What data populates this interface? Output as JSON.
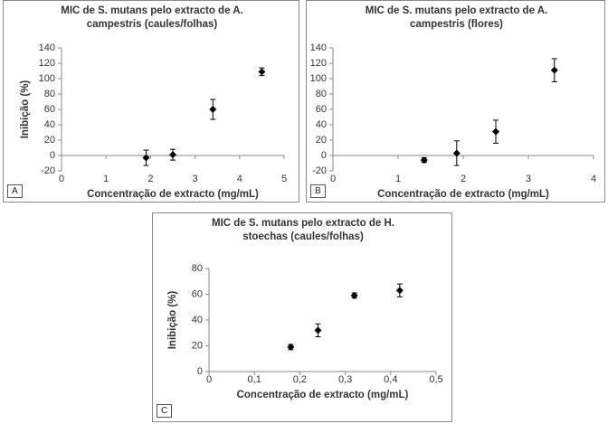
{
  "chart_data": [
    {
      "type": "scatter",
      "title": "MIC de S. mutans pelo extracto de A. campestris (caules/folhas)",
      "panel_label": "A",
      "x_label": "Concentração de extracto (mg/mL)",
      "y_label": "Inibição (%)",
      "x": [
        1.9,
        2.5,
        3.4,
        4.5
      ],
      "values": [
        -3,
        1,
        60,
        109
      ],
      "errors": [
        10,
        7,
        13,
        5
      ],
      "color": "#000000",
      "xlim": [
        0,
        5
      ],
      "xticks": [
        0,
        1,
        2,
        3,
        4,
        5
      ],
      "ylim": [
        -20,
        140
      ],
      "yticks": [
        -20,
        0,
        20,
        40,
        60,
        80,
        100,
        120,
        140
      ]
    },
    {
      "type": "scatter",
      "title": "MIC de S. mutans pelo extracto de A. campestris (flores)",
      "panel_label": "B",
      "x_label": "Concentração de extracto (mg/mL)",
      "y_label": "Inibição (%)",
      "x": [
        1.4,
        1.9,
        2.5,
        3.4
      ],
      "values": [
        -6,
        3,
        31,
        111
      ],
      "errors": [
        3,
        16,
        15,
        15
      ],
      "color": "#000000",
      "xlim": [
        0,
        4
      ],
      "xticks": [
        0,
        1,
        2,
        3,
        4
      ],
      "ylim": [
        -20,
        140
      ],
      "yticks": [
        -20,
        0,
        20,
        40,
        60,
        80,
        100,
        120,
        140
      ]
    },
    {
      "type": "scatter",
      "title": "MIC de S. mutans pelo extracto de H. stoechas (caules/folhas)",
      "panel_label": "C",
      "x_label": "Concentração de extracto (mg/mL)",
      "y_label": "Inibição (%)",
      "x": [
        0.18,
        0.24,
        0.32,
        0.42
      ],
      "values": [
        19,
        32,
        59,
        63
      ],
      "errors": [
        2,
        5,
        2,
        5
      ],
      "color": "#000000",
      "xlim": [
        0,
        0.5
      ],
      "xticks": [
        0,
        {
          "value": 0.1,
          "label": "0,1"
        },
        {
          "value": 0.2,
          "label": "0,2"
        },
        {
          "value": 0.3,
          "label": "0,3"
        },
        {
          "value": 0.4,
          "label": "0,4"
        },
        {
          "value": 0.5,
          "label": "0,5"
        }
      ],
      "ylim": [
        0,
        80
      ],
      "yticks": [
        0,
        20,
        40,
        60,
        80
      ]
    }
  ]
}
